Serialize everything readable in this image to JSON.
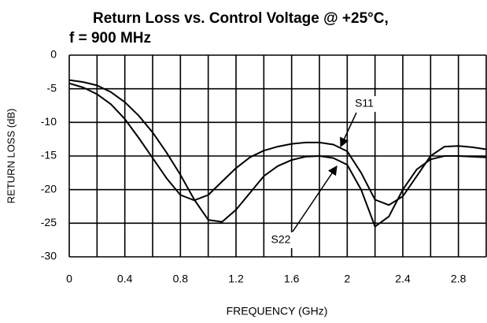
{
  "chart_data": {
    "type": "line",
    "title_lines": [
      "Return Loss vs. Control Voltage @ +25°C,",
      "f = 900 MHz"
    ],
    "x_label": "FREQUENCY (GHz)",
    "y_label": "RETURN LOSS (dB)",
    "x": [
      0,
      0.1,
      0.2,
      0.3,
      0.4,
      0.5,
      0.6,
      0.7,
      0.8,
      0.9,
      1.0,
      1.1,
      1.2,
      1.3,
      1.4,
      1.5,
      1.6,
      1.7,
      1.8,
      1.9,
      2.0,
      2.1,
      2.2,
      2.3,
      2.4,
      2.5,
      2.6,
      2.7,
      2.8,
      2.9,
      3.0
    ],
    "series": [
      {
        "name": "S11",
        "color": "#000000",
        "values": [
          -4.2,
          -4.8,
          -5.8,
          -7.3,
          -9.5,
          -12.3,
          -15.3,
          -18.3,
          -20.8,
          -21.6,
          -20.8,
          -18.8,
          -16.8,
          -15.2,
          -14.2,
          -13.6,
          -13.2,
          -13.0,
          -13.0,
          -13.3,
          -14.3,
          -17.5,
          -21.5,
          -22.3,
          -21.0,
          -18.0,
          -15.0,
          -13.6,
          -13.5,
          -13.7,
          -14.0
        ]
      },
      {
        "name": "S22",
        "color": "#000000",
        "values": [
          -3.7,
          -4.0,
          -4.5,
          -5.5,
          -7.0,
          -9.0,
          -11.5,
          -14.5,
          -17.8,
          -21.5,
          -24.5,
          -24.8,
          -23.0,
          -20.5,
          -18.0,
          -16.5,
          -15.6,
          -15.1,
          -15.0,
          -15.3,
          -16.3,
          -20.0,
          -25.5,
          -24.0,
          -20.0,
          -17.0,
          -15.5,
          -15.0,
          -15.0,
          -15.1,
          -15.2
        ]
      }
    ],
    "xlim": [
      0,
      3.0
    ],
    "xticks": [
      0,
      0.4,
      0.8,
      1.2,
      1.6,
      2,
      2.4,
      2.8
    ],
    "xgrid": [
      0,
      0.2,
      0.4,
      0.6,
      0.8,
      1.0,
      1.2,
      1.4,
      1.6,
      1.8,
      2.0,
      2.2,
      2.4,
      2.6,
      2.8,
      3.0
    ],
    "ylim": [
      -30,
      0
    ],
    "yticks": [
      0,
      -5,
      -10,
      -15,
      -20,
      -25,
      -30
    ],
    "grid": true
  }
}
